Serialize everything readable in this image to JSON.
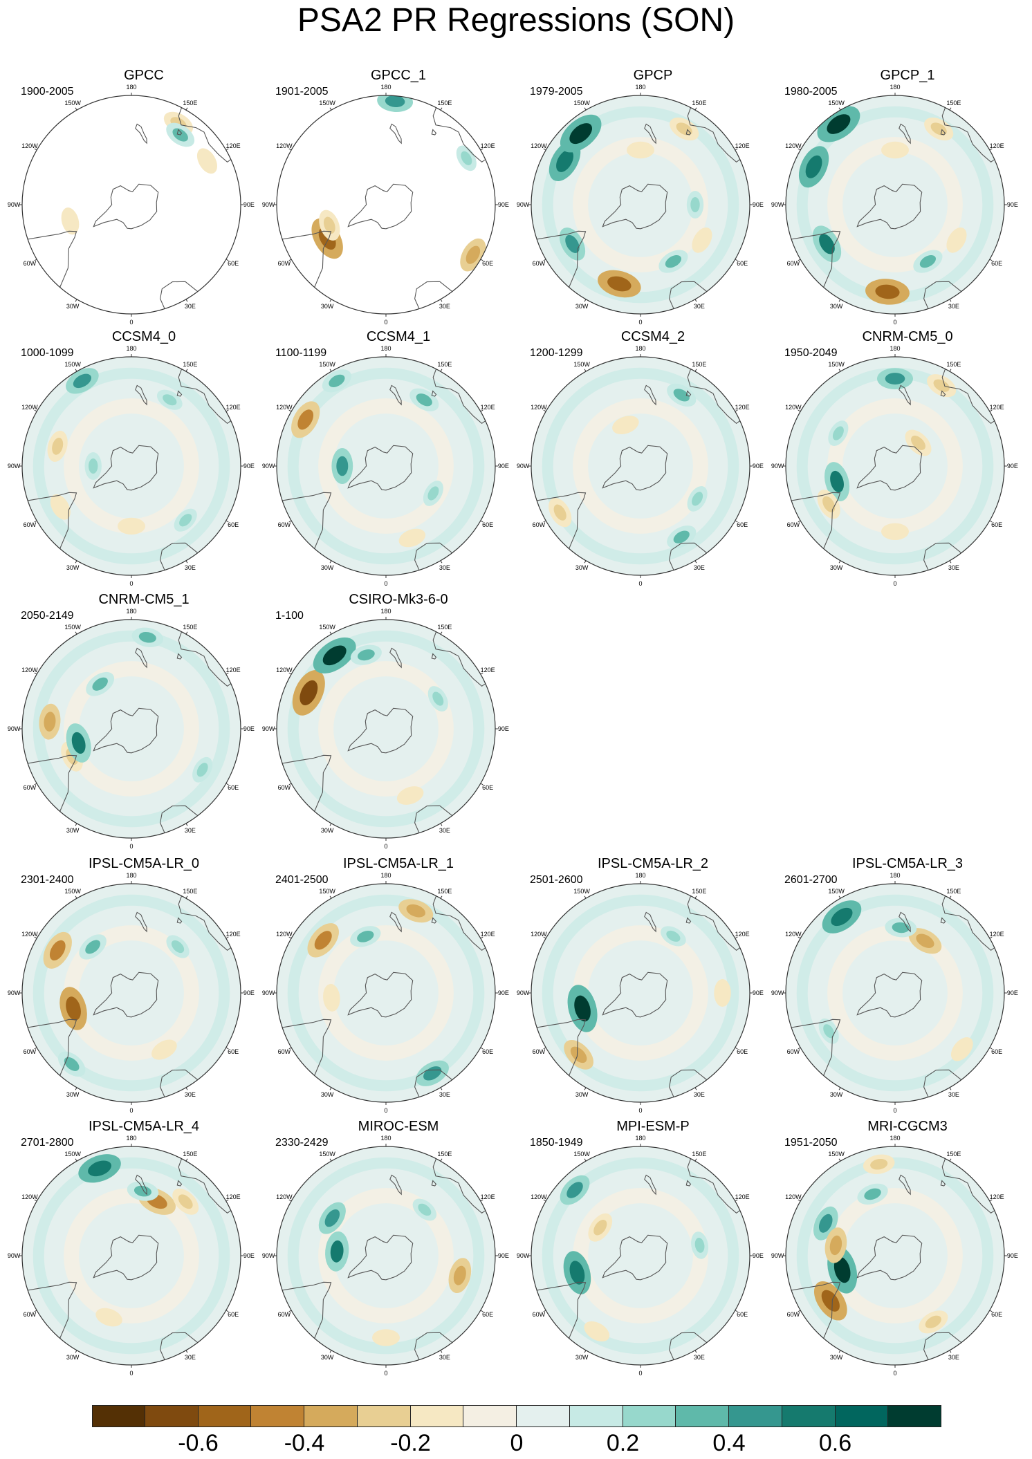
{
  "title": "PSA2 PR Regressions (SON)",
  "lon_labels": [
    "0",
    "30E",
    "60E",
    "90E",
    "120E",
    "150E",
    "180",
    "150W",
    "120W",
    "90W",
    "60W",
    "30W"
  ],
  "panels": [
    {
      "name": "GPCC",
      "period": "1900-2005",
      "coverage": "land",
      "field": [
        {
          "lon": 285,
          "r": 0.58,
          "v": -0.2
        },
        {
          "lon": 150,
          "r": 0.86,
          "v": -0.3
        },
        {
          "lon": 145,
          "r": 0.78,
          "v": 0.3
        },
        {
          "lon": 120,
          "r": 0.8,
          "v": -0.2
        }
      ]
    },
    {
      "name": "GPCC_1",
      "period": "1901-2005",
      "coverage": "land",
      "field": [
        {
          "lon": 300,
          "r": 0.62,
          "v": -0.6
        },
        {
          "lon": 290,
          "r": 0.55,
          "v": -0.3
        },
        {
          "lon": 60,
          "r": 0.92,
          "v": -0.4
        },
        {
          "lon": 120,
          "r": 0.85,
          "v": 0.2
        },
        {
          "lon": 175,
          "r": 0.95,
          "v": 0.4
        }
      ]
    },
    {
      "name": "GPCP",
      "period": "1979-2005",
      "coverage": "full",
      "field": [
        {
          "lon": 345,
          "r": 0.75,
          "v": -0.6
        },
        {
          "lon": 300,
          "r": 0.72,
          "v": 0.4
        },
        {
          "lon": 240,
          "r": 0.8,
          "v": 0.6
        },
        {
          "lon": 220,
          "r": 0.85,
          "v": 0.7
        },
        {
          "lon": 180,
          "r": 0.5,
          "v": -0.2
        },
        {
          "lon": 90,
          "r": 0.5,
          "v": 0.2
        },
        {
          "lon": 60,
          "r": 0.65,
          "v": -0.2
        },
        {
          "lon": 30,
          "r": 0.6,
          "v": 0.3
        },
        {
          "lon": 150,
          "r": 0.8,
          "v": -0.3
        }
      ]
    },
    {
      "name": "GPCP_1",
      "period": "1980-2005",
      "coverage": "full",
      "field": [
        {
          "lon": 355,
          "r": 0.8,
          "v": -0.6
        },
        {
          "lon": 300,
          "r": 0.72,
          "v": 0.5
        },
        {
          "lon": 245,
          "r": 0.82,
          "v": 0.6
        },
        {
          "lon": 215,
          "r": 0.9,
          "v": 0.7
        },
        {
          "lon": 180,
          "r": 0.5,
          "v": -0.2
        },
        {
          "lon": 60,
          "r": 0.65,
          "v": -0.2
        },
        {
          "lon": 30,
          "r": 0.6,
          "v": 0.3
        },
        {
          "lon": 150,
          "r": 0.8,
          "v": -0.3
        }
      ]
    },
    {
      "name": "CCSM4_0",
      "period": "1000-1099",
      "coverage": "full",
      "field": [
        {
          "lon": 300,
          "r": 0.75,
          "v": -0.2
        },
        {
          "lon": 255,
          "r": 0.7,
          "v": -0.3
        },
        {
          "lon": 210,
          "r": 0.9,
          "v": 0.4
        },
        {
          "lon": 150,
          "r": 0.7,
          "v": 0.2
        },
        {
          "lon": 45,
          "r": 0.7,
          "v": 0.2
        },
        {
          "lon": 0,
          "r": 0.55,
          "v": -0.2
        },
        {
          "lon": 270,
          "r": 0.35,
          "v": 0.2
        }
      ]
    },
    {
      "name": "CCSM4_1",
      "period": "1100-1199",
      "coverage": "full",
      "field": [
        {
          "lon": 240,
          "r": 0.85,
          "v": -0.5
        },
        {
          "lon": 270,
          "r": 0.4,
          "v": 0.4
        },
        {
          "lon": 210,
          "r": 0.9,
          "v": 0.3
        },
        {
          "lon": 150,
          "r": 0.7,
          "v": 0.3
        },
        {
          "lon": 20,
          "r": 0.7,
          "v": -0.2
        },
        {
          "lon": 60,
          "r": 0.5,
          "v": 0.2
        }
      ]
    },
    {
      "name": "CCSM4_2",
      "period": "1200-1299",
      "coverage": "full",
      "field": [
        {
          "lon": 300,
          "r": 0.85,
          "v": -0.3
        },
        {
          "lon": 60,
          "r": 0.6,
          "v": 0.2
        },
        {
          "lon": 30,
          "r": 0.75,
          "v": 0.3
        },
        {
          "lon": 150,
          "r": 0.75,
          "v": 0.3
        },
        {
          "lon": 200,
          "r": 0.4,
          "v": -0.2
        }
      ]
    },
    {
      "name": "CNRM-CM5_0",
      "period": "1950-2049",
      "coverage": "full",
      "field": [
        {
          "lon": 285,
          "r": 0.55,
          "v": 0.5
        },
        {
          "lon": 300,
          "r": 0.7,
          "v": -0.3
        },
        {
          "lon": 180,
          "r": 0.8,
          "v": 0.4
        },
        {
          "lon": 150,
          "r": 0.85,
          "v": -0.3
        },
        {
          "lon": 135,
          "r": 0.3,
          "v": -0.3
        },
        {
          "lon": 240,
          "r": 0.6,
          "v": 0.2
        },
        {
          "lon": 0,
          "r": 0.6,
          "v": -0.2
        }
      ]
    },
    {
      "name": "CNRM-CM5_1",
      "period": "2050-2149",
      "coverage": "full",
      "field": [
        {
          "lon": 265,
          "r": 0.75,
          "v": -0.4
        },
        {
          "lon": 295,
          "r": 0.6,
          "v": -0.3
        },
        {
          "lon": 285,
          "r": 0.5,
          "v": 0.5
        },
        {
          "lon": 215,
          "r": 0.5,
          "v": 0.3
        },
        {
          "lon": 170,
          "r": 0.85,
          "v": 0.3
        },
        {
          "lon": 60,
          "r": 0.75,
          "v": 0.2
        }
      ]
    },
    {
      "name": "CSIRO-Mk3-6-0",
      "period": "1-100",
      "coverage": "full",
      "field": [
        {
          "lon": 245,
          "r": 0.78,
          "v": -0.7
        },
        {
          "lon": 215,
          "r": 0.82,
          "v": 0.7
        },
        {
          "lon": 195,
          "r": 0.7,
          "v": 0.3
        },
        {
          "lon": 20,
          "r": 0.65,
          "v": -0.2
        },
        {
          "lon": 120,
          "r": 0.55,
          "v": 0.2
        }
      ]
    },
    {
      "name": "IPSL-CM5A-LR_0",
      "period": "2301-2400",
      "coverage": "full",
      "field": [
        {
          "lon": 285,
          "r": 0.55,
          "v": -0.6
        },
        {
          "lon": 240,
          "r": 0.78,
          "v": -0.5
        },
        {
          "lon": 220,
          "r": 0.55,
          "v": 0.3
        },
        {
          "lon": 320,
          "r": 0.85,
          "v": 0.3
        },
        {
          "lon": 135,
          "r": 0.6,
          "v": 0.2
        },
        {
          "lon": 30,
          "r": 0.6,
          "v": -0.2
        }
      ]
    },
    {
      "name": "IPSL-CM5A-LR_1",
      "period": "2401-2500",
      "coverage": "full",
      "field": [
        {
          "lon": 230,
          "r": 0.75,
          "v": -0.5
        },
        {
          "lon": 200,
          "r": 0.55,
          "v": 0.3
        },
        {
          "lon": 160,
          "r": 0.8,
          "v": -0.4
        },
        {
          "lon": 30,
          "r": 0.85,
          "v": 0.4
        },
        {
          "lon": 275,
          "r": 0.5,
          "v": -0.2
        }
      ]
    },
    {
      "name": "IPSL-CM5A-LR_2",
      "period": "2501-2600",
      "coverage": "full",
      "field": [
        {
          "lon": 285,
          "r": 0.55,
          "v": 0.7
        },
        {
          "lon": 315,
          "r": 0.8,
          "v": -0.4
        },
        {
          "lon": 90,
          "r": 0.75,
          "v": -0.2
        },
        {
          "lon": 150,
          "r": 0.6,
          "v": 0.2
        }
      ]
    },
    {
      "name": "IPSL-CM5A-LR_3",
      "period": "2601-2700",
      "coverage": "full",
      "field": [
        {
          "lon": 215,
          "r": 0.85,
          "v": 0.6
        },
        {
          "lon": 150,
          "r": 0.55,
          "v": -0.4
        },
        {
          "lon": 175,
          "r": 0.6,
          "v": 0.3
        },
        {
          "lon": 50,
          "r": 0.8,
          "v": -0.2
        },
        {
          "lon": 300,
          "r": 0.7,
          "v": 0.2
        }
      ]
    },
    {
      "name": "IPSL-CM5A-LR_4",
      "period": "2701-2800",
      "coverage": "full",
      "field": [
        {
          "lon": 200,
          "r": 0.85,
          "v": 0.6
        },
        {
          "lon": 155,
          "r": 0.55,
          "v": -0.5
        },
        {
          "lon": 135,
          "r": 0.7,
          "v": -0.3
        },
        {
          "lon": 170,
          "r": 0.6,
          "v": 0.3
        },
        {
          "lon": 340,
          "r": 0.6,
          "v": -0.2
        }
      ]
    },
    {
      "name": "MIROC-ESM",
      "period": "2330-2429",
      "coverage": "full",
      "field": [
        {
          "lon": 265,
          "r": 0.45,
          "v": 0.5
        },
        {
          "lon": 235,
          "r": 0.6,
          "v": 0.4
        },
        {
          "lon": 75,
          "r": 0.7,
          "v": -0.4
        },
        {
          "lon": 0,
          "r": 0.75,
          "v": -0.2
        },
        {
          "lon": 140,
          "r": 0.55,
          "v": 0.2
        }
      ]
    },
    {
      "name": "MPI-ESM-P",
      "period": "1850-1949",
      "coverage": "full",
      "field": [
        {
          "lon": 285,
          "r": 0.6,
          "v": 0.6
        },
        {
          "lon": 235,
          "r": 0.45,
          "v": -0.3
        },
        {
          "lon": 225,
          "r": 0.85,
          "v": 0.4
        },
        {
          "lon": 330,
          "r": 0.8,
          "v": -0.2
        },
        {
          "lon": 100,
          "r": 0.55,
          "v": 0.2
        }
      ]
    },
    {
      "name": "MRI-CGCM3",
      "period": "1951-2050",
      "coverage": "full",
      "field": [
        {
          "lon": 305,
          "r": 0.72,
          "v": -0.6
        },
        {
          "lon": 285,
          "r": 0.5,
          "v": 0.7
        },
        {
          "lon": 245,
          "r": 0.7,
          "v": 0.4
        },
        {
          "lon": 260,
          "r": 0.55,
          "v": -0.4
        },
        {
          "lon": 200,
          "r": 0.6,
          "v": 0.3
        },
        {
          "lon": 30,
          "r": 0.7,
          "v": -0.3
        },
        {
          "lon": 190,
          "r": 0.85,
          "v": -0.3
        }
      ]
    }
  ],
  "colorbar": {
    "colors": [
      "#543005",
      "#7f4a0f",
      "#a0651a",
      "#c08333",
      "#d5aa5c",
      "#e8cf93",
      "#f6e8c3",
      "#f4efe3",
      "#e4f0ee",
      "#c7eae5",
      "#97d8cc",
      "#5fb9aa",
      "#35978f",
      "#157a6e",
      "#01665e",
      "#003c30"
    ],
    "tick_labels": [
      "-0.6",
      "-0.4",
      "-0.2",
      "0",
      "0.2",
      "0.4",
      "0.6"
    ],
    "tick_values": [
      -0.6,
      -0.4,
      -0.2,
      0,
      0.2,
      0.4,
      0.6
    ],
    "range": [
      -0.8,
      0.8
    ]
  }
}
